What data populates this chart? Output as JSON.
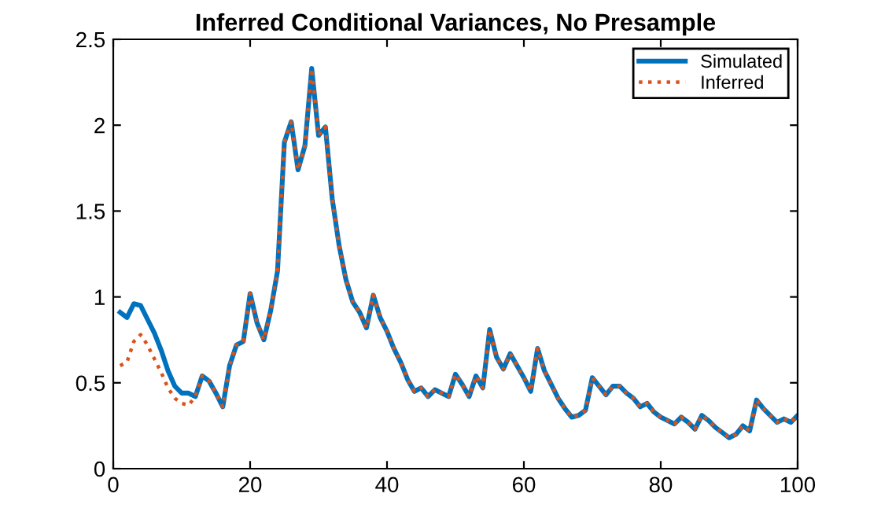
{
  "chart_data": {
    "type": "line",
    "title": "Inferred Conditional Variances, No Presample",
    "x": [
      1,
      2,
      3,
      4,
      5,
      6,
      7,
      8,
      9,
      10,
      11,
      12,
      13,
      14,
      15,
      16,
      17,
      18,
      19,
      20,
      21,
      22,
      23,
      24,
      25,
      26,
      27,
      28,
      29,
      30,
      31,
      32,
      33,
      34,
      35,
      36,
      37,
      38,
      39,
      40,
      41,
      42,
      43,
      44,
      45,
      46,
      47,
      48,
      49,
      50,
      51,
      52,
      53,
      54,
      55,
      56,
      57,
      58,
      59,
      60,
      61,
      62,
      63,
      64,
      65,
      66,
      67,
      68,
      69,
      70,
      71,
      72,
      73,
      74,
      75,
      76,
      77,
      78,
      79,
      80,
      81,
      82,
      83,
      84,
      85,
      86,
      87,
      88,
      89,
      90,
      91,
      92,
      93,
      94,
      95,
      96,
      97,
      98,
      99,
      100
    ],
    "series": [
      {
        "name": "Simulated",
        "color": "#0072bd",
        "line_style": "solid",
        "values": [
          0.91,
          0.88,
          0.96,
          0.95,
          0.87,
          0.79,
          0.69,
          0.57,
          0.48,
          0.44,
          0.44,
          0.42,
          0.54,
          0.51,
          0.44,
          0.36,
          0.6,
          0.72,
          0.74,
          1.02,
          0.85,
          0.75,
          0.92,
          1.15,
          1.9,
          2.02,
          1.74,
          1.88,
          2.33,
          1.94,
          1.99,
          1.57,
          1.3,
          1.1,
          0.97,
          0.91,
          0.82,
          1.01,
          0.88,
          0.8,
          0.7,
          0.62,
          0.52,
          0.45,
          0.47,
          0.42,
          0.46,
          0.44,
          0.42,
          0.55,
          0.49,
          0.42,
          0.54,
          0.47,
          0.81,
          0.65,
          0.58,
          0.67,
          0.6,
          0.53,
          0.45,
          0.7,
          0.57,
          0.49,
          0.41,
          0.35,
          0.3,
          0.31,
          0.34,
          0.53,
          0.48,
          0.43,
          0.48,
          0.48,
          0.44,
          0.41,
          0.36,
          0.38,
          0.33,
          0.3,
          0.28,
          0.26,
          0.3,
          0.27,
          0.23,
          0.31,
          0.28,
          0.24,
          0.21,
          0.18,
          0.2,
          0.25,
          0.22,
          0.4,
          0.35,
          0.31,
          0.27,
          0.29,
          0.27,
          0.31
        ]
      },
      {
        "name": "Inferred",
        "color": "#d95319",
        "line_style": "dotted",
        "values": [
          0.6,
          0.62,
          0.74,
          0.78,
          0.72,
          0.64,
          0.56,
          0.47,
          0.41,
          0.38,
          0.37,
          0.42,
          0.54,
          0.51,
          0.44,
          0.36,
          0.6,
          0.72,
          0.74,
          1.02,
          0.85,
          0.75,
          0.92,
          1.15,
          1.9,
          2.02,
          1.74,
          1.88,
          2.33,
          1.94,
          1.99,
          1.57,
          1.3,
          1.1,
          0.97,
          0.91,
          0.82,
          1.01,
          0.88,
          0.8,
          0.7,
          0.62,
          0.52,
          0.45,
          0.47,
          0.42,
          0.46,
          0.44,
          0.42,
          0.55,
          0.49,
          0.42,
          0.54,
          0.47,
          0.81,
          0.65,
          0.58,
          0.67,
          0.6,
          0.53,
          0.45,
          0.7,
          0.57,
          0.49,
          0.41,
          0.35,
          0.3,
          0.31,
          0.34,
          0.53,
          0.48,
          0.43,
          0.48,
          0.48,
          0.44,
          0.41,
          0.36,
          0.38,
          0.33,
          0.3,
          0.28,
          0.26,
          0.3,
          0.27,
          0.23,
          0.31,
          0.28,
          0.24,
          0.21,
          0.18,
          0.2,
          0.25,
          0.22,
          0.4,
          0.35,
          0.31,
          0.27,
          0.29,
          0.27,
          0.31
        ]
      }
    ],
    "xlim": [
      0,
      100
    ],
    "xticks": [
      0,
      20,
      40,
      60,
      80,
      100
    ],
    "ylim": [
      0,
      2.5
    ],
    "yticks": [
      0,
      0.5,
      1,
      1.5,
      2,
      2.5
    ],
    "grid": false,
    "legend": "top right",
    "marker": "none"
  }
}
